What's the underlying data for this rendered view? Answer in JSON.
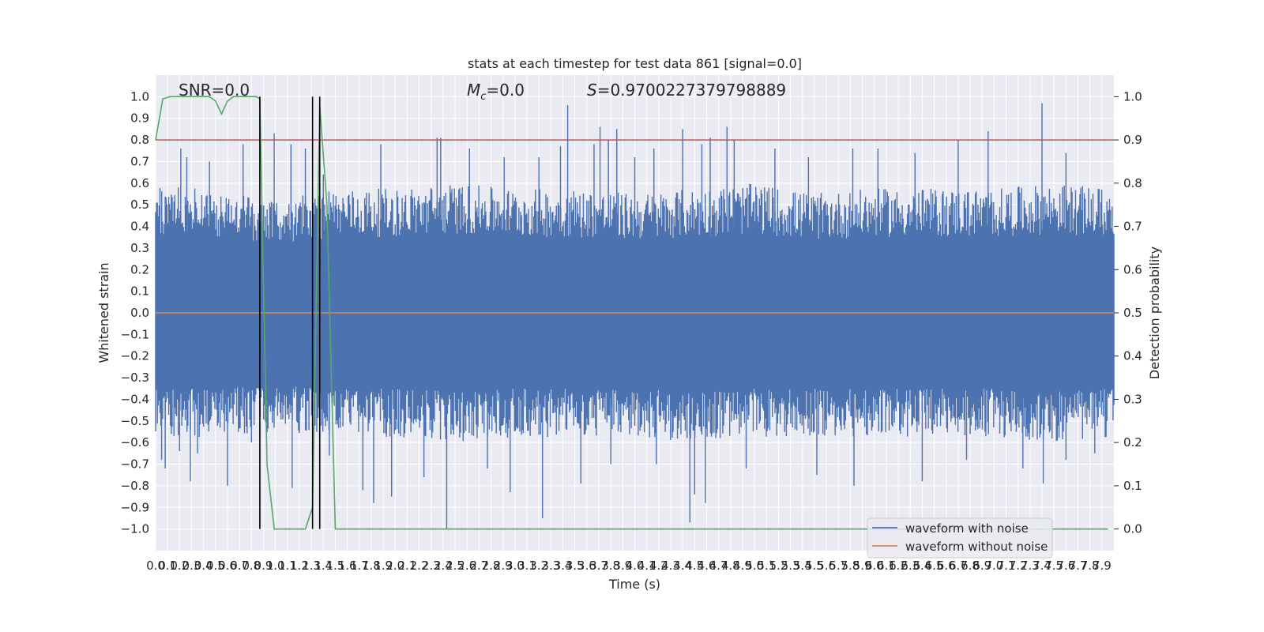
{
  "chart_data": {
    "type": "line",
    "title": "stats at each timestep for test data 861 [signal=0.0]",
    "xlabel": "Time (s)",
    "ylabel": "Whitened strain",
    "y2label": "Detection probability",
    "xlim": [
      0.0,
      8.0
    ],
    "ylim": [
      -1.1,
      1.1
    ],
    "y2lim": [
      -0.05,
      1.05
    ],
    "grid": true,
    "legend_position": "lower right",
    "x_ticks": [
      "0.0",
      "0.1",
      "0.2",
      "0.3",
      "0.4",
      "0.5",
      "0.6",
      "0.7",
      "0.8",
      "0.9",
      "1.0",
      "1.1",
      "1.2",
      "1.3",
      "1.4",
      "1.5",
      "1.6",
      "1.7",
      "1.8",
      "1.9",
      "2.0",
      "2.1",
      "2.2",
      "2.3",
      "2.4",
      "2.5",
      "2.6",
      "2.7",
      "2.8",
      "2.9",
      "3.0",
      "3.1",
      "3.2",
      "3.3",
      "3.4",
      "3.5",
      "3.6",
      "3.7",
      "3.8",
      "3.9",
      "4.0",
      "4.1",
      "4.2",
      "4.3",
      "4.4",
      "4.5",
      "4.6",
      "4.7",
      "4.8",
      "4.9",
      "5.0",
      "5.1",
      "5.2",
      "5.3",
      "5.4",
      "5.5",
      "5.6",
      "5.7",
      "5.8",
      "5.9",
      "6.0",
      "6.1",
      "6.2",
      "6.3",
      "6.4",
      "6.5",
      "6.6",
      "6.7",
      "6.8",
      "6.9",
      "7.0",
      "7.1",
      "7.2",
      "7.3",
      "7.4",
      "7.5",
      "7.6",
      "7.7",
      "7.8",
      "7.9"
    ],
    "y_ticks": [
      "1.0",
      "0.9",
      "0.8",
      "0.7",
      "0.6",
      "0.5",
      "0.4",
      "0.3",
      "0.2",
      "0.1",
      "0.0",
      "-0.1",
      "-0.2",
      "-0.3",
      "-0.4",
      "-0.5",
      "-0.6",
      "-0.7",
      "-0.8",
      "-0.9",
      "-1.0"
    ],
    "y2_ticks": [
      "1.0",
      "0.9",
      "0.8",
      "0.7",
      "0.6",
      "0.5",
      "0.4",
      "0.3",
      "0.2",
      "0.1",
      "0.0"
    ],
    "annotations": {
      "snr": "SNR=0.0",
      "mc_symbol": "M",
      "mc_sub": "c",
      "mc_value": "=0.0",
      "s_symbol": "S",
      "s_value": "=0.9700227379798889"
    },
    "series": [
      {
        "name": "waveform with noise",
        "color": "#4c72b0",
        "style": "noise band",
        "upper_envelope": {
          "x": [
            0.0,
            0.5,
            1.0,
            1.5,
            2.0,
            2.5,
            3.0,
            3.5,
            4.0,
            4.5,
            5.0,
            5.5,
            6.0,
            6.5,
            7.0,
            7.5,
            8.0
          ],
          "y": [
            0.52,
            0.5,
            0.45,
            0.5,
            0.5,
            0.52,
            0.5,
            0.5,
            0.48,
            0.5,
            0.52,
            0.48,
            0.5,
            0.5,
            0.5,
            0.52,
            0.5
          ]
        },
        "lower_envelope": {
          "x": [
            0.0,
            0.5,
            1.0,
            1.5,
            2.0,
            2.5,
            3.0,
            3.5,
            4.0,
            4.5,
            5.0,
            5.5,
            6.0,
            6.5,
            7.0,
            7.5,
            8.0
          ],
          "y": [
            -0.5,
            -0.5,
            -0.48,
            -0.5,
            -0.5,
            -0.52,
            -0.5,
            -0.5,
            -0.5,
            -0.52,
            -0.5,
            -0.5,
            -0.5,
            -0.5,
            -0.5,
            -0.52,
            -0.5
          ]
        },
        "spikes": [
          {
            "x": 0.21,
            "y": 0.76
          },
          {
            "x": 0.26,
            "y": 0.72
          },
          {
            "x": 0.45,
            "y": 0.7
          },
          {
            "x": 0.73,
            "y": 0.78
          },
          {
            "x": 0.99,
            "y": 0.83
          },
          {
            "x": 1.13,
            "y": 0.78
          },
          {
            "x": 1.25,
            "y": 0.76
          },
          {
            "x": 1.4,
            "y": 0.64
          },
          {
            "x": 1.88,
            "y": 0.78
          },
          {
            "x": 2.35,
            "y": 0.81
          },
          {
            "x": 2.38,
            "y": 0.81
          },
          {
            "x": 2.62,
            "y": 0.76
          },
          {
            "x": 2.91,
            "y": 0.72
          },
          {
            "x": 3.2,
            "y": 0.72
          },
          {
            "x": 3.38,
            "y": 0.77
          },
          {
            "x": 3.44,
            "y": 0.96
          },
          {
            "x": 3.66,
            "y": 0.78
          },
          {
            "x": 3.71,
            "y": 0.86
          },
          {
            "x": 3.78,
            "y": 0.8
          },
          {
            "x": 3.85,
            "y": 0.85
          },
          {
            "x": 4.0,
            "y": 0.72
          },
          {
            "x": 4.16,
            "y": 0.76
          },
          {
            "x": 4.4,
            "y": 0.85
          },
          {
            "x": 4.56,
            "y": 0.78
          },
          {
            "x": 4.63,
            "y": 0.81
          },
          {
            "x": 4.77,
            "y": 0.86
          },
          {
            "x": 4.83,
            "y": 0.8
          },
          {
            "x": 5.17,
            "y": 0.76
          },
          {
            "x": 5.45,
            "y": 0.72
          },
          {
            "x": 5.82,
            "y": 0.76
          },
          {
            "x": 6.03,
            "y": 0.76
          },
          {
            "x": 6.34,
            "y": 0.74
          },
          {
            "x": 6.7,
            "y": 0.8
          },
          {
            "x": 6.95,
            "y": 0.84
          },
          {
            "x": 7.4,
            "y": 0.97
          },
          {
            "x": 7.6,
            "y": 0.74
          },
          {
            "x": 0.05,
            "y": -0.68
          },
          {
            "x": 0.08,
            "y": -0.72
          },
          {
            "x": 0.2,
            "y": -0.64
          },
          {
            "x": 0.29,
            "y": -0.78
          },
          {
            "x": 0.35,
            "y": -0.65
          },
          {
            "x": 0.6,
            "y": -0.8
          },
          {
            "x": 0.8,
            "y": -0.6
          },
          {
            "x": 1.14,
            "y": -0.81
          },
          {
            "x": 1.45,
            "y": -0.66
          },
          {
            "x": 1.73,
            "y": -0.82
          },
          {
            "x": 1.82,
            "y": -0.88
          },
          {
            "x": 1.97,
            "y": -0.85
          },
          {
            "x": 2.24,
            "y": -0.76
          },
          {
            "x": 2.43,
            "y": -1.0
          },
          {
            "x": 2.77,
            "y": -0.72
          },
          {
            "x": 2.96,
            "y": -0.83
          },
          {
            "x": 3.23,
            "y": -0.95
          },
          {
            "x": 3.55,
            "y": -0.79
          },
          {
            "x": 3.8,
            "y": -0.7
          },
          {
            "x": 4.18,
            "y": -0.7
          },
          {
            "x": 4.46,
            "y": -0.97
          },
          {
            "x": 4.5,
            "y": -0.84
          },
          {
            "x": 4.59,
            "y": -0.88
          },
          {
            "x": 4.93,
            "y": -0.72
          },
          {
            "x": 5.52,
            "y": -0.75
          },
          {
            "x": 5.83,
            "y": -0.8
          },
          {
            "x": 6.4,
            "y": -0.78
          },
          {
            "x": 6.77,
            "y": -0.68
          },
          {
            "x": 7.24,
            "y": -0.72
          },
          {
            "x": 7.41,
            "y": -0.79
          },
          {
            "x": 7.6,
            "y": -0.68
          },
          {
            "x": 7.84,
            "y": -0.65
          }
        ]
      },
      {
        "name": "waveform without noise",
        "color": "#dd8452",
        "x": [
          0.0,
          8.0
        ],
        "y": [
          0.0,
          0.0
        ]
      },
      {
        "name": "",
        "axis": "right",
        "color": "#55a868",
        "x": [
          0.0,
          0.06,
          0.12,
          0.2,
          0.3,
          0.4,
          0.45,
          0.5,
          0.55,
          0.6,
          0.65,
          0.7,
          0.75,
          0.8,
          0.84,
          0.87,
          0.93,
          0.99,
          1.1,
          1.25,
          1.31,
          1.37,
          1.43,
          1.5,
          1.56,
          1.7,
          2.0,
          3.0,
          4.0,
          5.0,
          6.0,
          7.0,
          7.95
        ],
        "y": [
          0.9,
          0.995,
          1.0,
          1.0,
          1.0,
          1.0,
          1.0,
          0.99,
          0.96,
          0.99,
          1.0,
          1.0,
          1.0,
          1.0,
          1.0,
          0.995,
          0.15,
          0.0,
          0.0,
          0.0,
          0.05,
          0.98,
          0.75,
          0.0,
          0.0,
          0.0,
          0.0,
          0.0,
          0.0,
          0.0,
          0.0,
          0.0,
          0.0
        ]
      }
    ],
    "threshold": {
      "axis": "right",
      "y": 0.9,
      "color": "#c44e52"
    },
    "vertical_lines": [
      0.87,
      1.31,
      1.37
    ],
    "legend": [
      "waveform with noise",
      "waveform without noise"
    ]
  }
}
